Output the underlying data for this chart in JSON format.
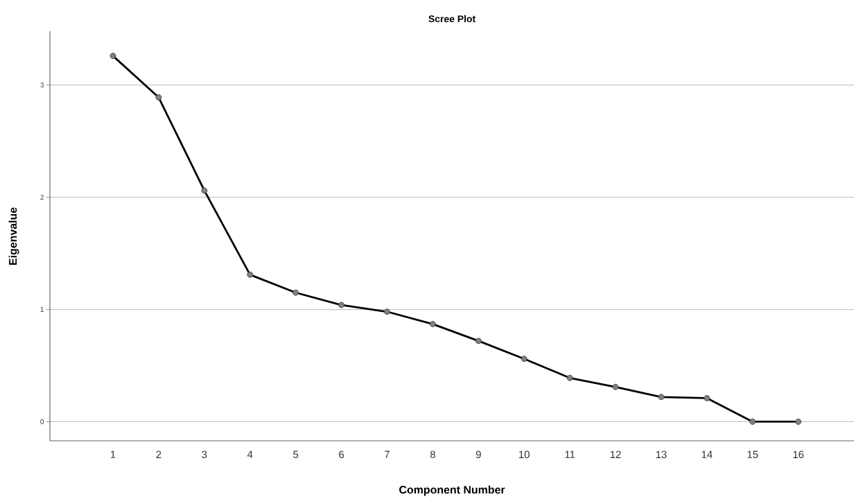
{
  "chart_data": {
    "type": "line",
    "title": "Scree Plot",
    "xlabel": "Component Number",
    "ylabel": "Eigenvalue",
    "categories": [
      "1",
      "2",
      "3",
      "4",
      "5",
      "6",
      "7",
      "8",
      "9",
      "10",
      "11",
      "12",
      "13",
      "14",
      "15",
      "16"
    ],
    "series": [
      {
        "color": "#000000",
        "values": [
          3.26,
          2.89,
          2.06,
          1.31,
          1.15,
          1.04,
          0.98,
          0.87,
          0.72,
          0.56,
          0.39,
          0.31,
          0.22,
          0.21,
          0.0,
          0.0
        ]
      }
    ],
    "ylim": [
      -0.17,
      3.48
    ],
    "yticks": [
      0,
      1,
      2,
      3
    ],
    "grid": "y",
    "marker": "circle",
    "line_style": "solid"
  }
}
